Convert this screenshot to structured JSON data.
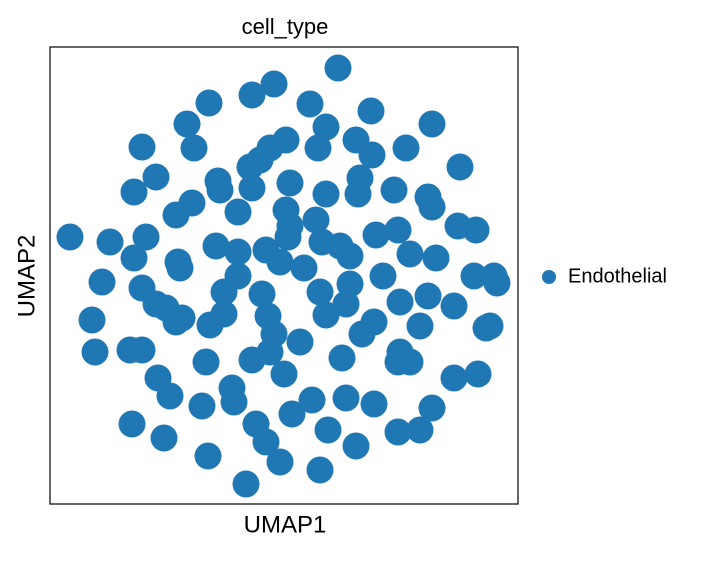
{
  "chart_data": {
    "type": "scatter",
    "title": "cell_type",
    "x_label": "UMAP1",
    "y_label": "UMAP2",
    "xlim": [
      0,
      468
    ],
    "ylim": [
      0,
      457
    ],
    "legend": "right",
    "x": [
      288,
      224,
      202,
      159,
      260,
      321,
      137,
      276,
      382,
      92,
      144,
      236,
      220,
      268,
      306,
      322,
      356,
      410,
      210,
      200,
      106,
      84,
      168,
      170,
      202,
      240,
      276,
      310,
      308,
      344,
      378,
      382,
      142,
      126,
      188,
      236,
      266,
      238,
      240,
      96,
      60,
      20,
      84,
      128,
      130,
      166,
      188,
      216,
      230,
      254,
      272,
      290,
      300,
      326,
      348,
      360,
      386,
      408,
      426,
      333,
      424,
      444,
      447,
      52,
      92,
      188,
      174,
      212,
      270,
      300,
      296,
      350,
      378,
      404,
      106,
      116,
      132,
      126,
      160,
      174,
      218,
      224,
      276,
      312,
      324,
      370,
      436,
      440,
      42,
      45,
      80,
      92,
      156,
      202,
      220,
      250,
      292,
      348,
      360,
      350,
      234,
      108,
      120,
      182,
      184,
      152,
      262,
      242,
      296,
      324,
      382,
      404,
      428,
      82,
      114,
      206,
      216,
      278,
      306,
      348,
      370,
      158,
      230,
      270,
      196
    ],
    "series": [
      {
        "name": "Endothelial",
        "color": "#1f77b4",
        "values": [
          436,
          420,
          409,
          401,
          400,
          393,
          380,
          377,
          380,
          357,
          356,
          364,
          356,
          356,
          364,
          349,
          356,
          337,
          344,
          337,
          327,
          312,
          323,
          314,
          316,
          321,
          310,
          326,
          310,
          314,
          307,
          297,
          301,
          289,
          292,
          294,
          284,
          267,
          278,
          267,
          262,
          267,
          246,
          242,
          236,
          258,
          252,
          254,
          242,
          236,
          262,
          258,
          248,
          269,
          274,
          250,
          246,
          278,
          274,
          228,
          228,
          228,
          221,
          222,
          216,
          228,
          212,
          210,
          212,
          220,
          200,
          202,
          208,
          198,
          200,
          196,
          186,
          182,
          179,
          190,
          188,
          170,
          189,
          170,
          182,
          178,
          176,
          178,
          184,
          152,
          154,
          154,
          142,
          144,
          152,
          162,
          146,
          142,
          142,
          152,
          130,
          126,
          108,
          116,
          102,
          98,
          104,
          90,
          106,
          100,
          96,
          126,
          130,
          80,
          66,
          80,
          62,
          74,
          58,
          72,
          74,
          48,
          42,
          34,
          20
        ]
      }
    ]
  }
}
